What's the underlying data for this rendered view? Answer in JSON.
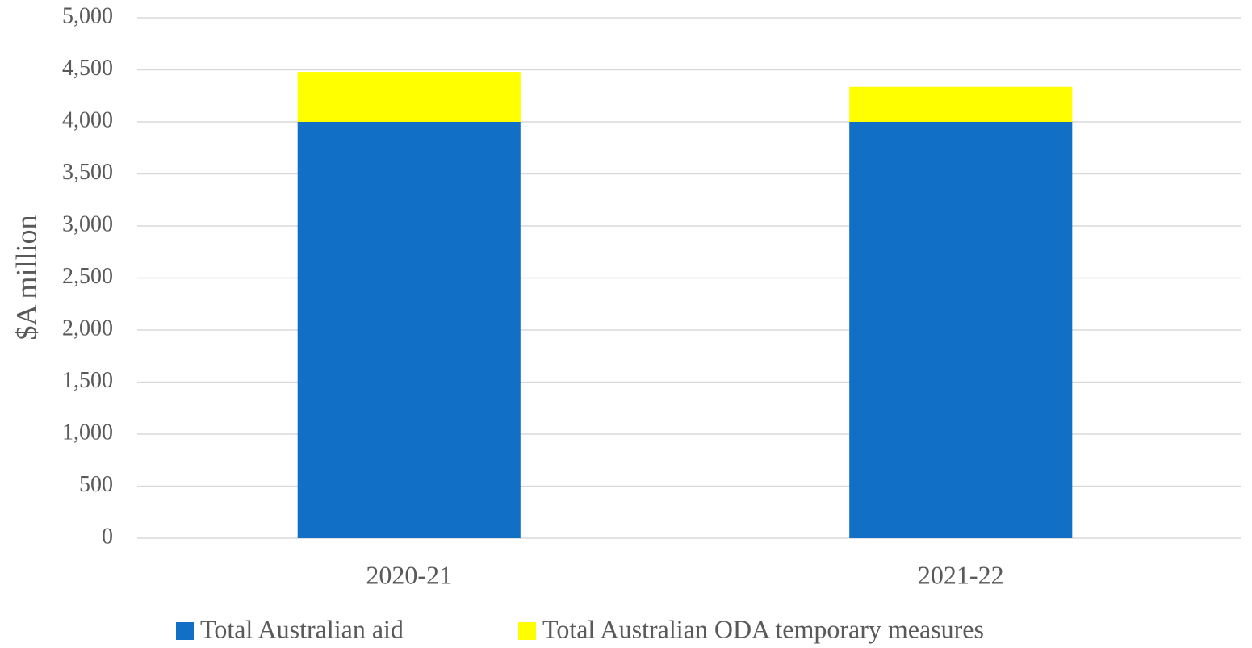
{
  "chart_data": {
    "type": "stacked_bar",
    "y_label": "$A million",
    "categories": [
      "2020-21",
      "2021-22"
    ],
    "series": [
      {
        "name": "Total Australian aid",
        "color": "#1170c6",
        "values": [
          4000,
          4000
        ]
      },
      {
        "name": "Total Australian ODA temporary measures",
        "color": "#ffff00",
        "values": [
          480,
          335
        ]
      }
    ],
    "ylim": [
      0,
      5000
    ],
    "yticks": [
      0,
      500,
      {
        "value": 1000,
        "label": "1,000"
      },
      {
        "value": 1500,
        "label": "1,500"
      },
      {
        "value": 2000,
        "label": "2,000"
      },
      {
        "value": 2500,
        "label": "2,500"
      },
      {
        "value": 3000,
        "label": "3,000"
      },
      {
        "value": 3500,
        "label": "3,500"
      },
      {
        "value": 4000,
        "label": "4,000"
      },
      {
        "value": 4500,
        "label": "4,500"
      },
      {
        "value": 5000,
        "label": "5,000"
      }
    ],
    "grid": true,
    "legend": "bottom"
  }
}
